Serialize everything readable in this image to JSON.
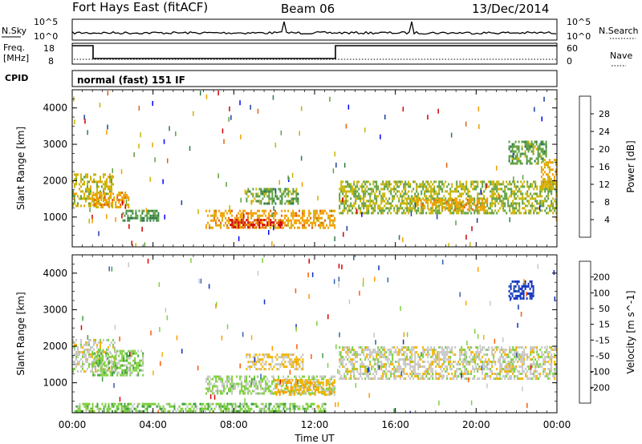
{
  "header": {
    "station": "Fort Hays East (fitACF)",
    "beam": "Beam 06",
    "date": "13/Dec/2014"
  },
  "top_panel": {
    "left_label": "N.Sky",
    "right_label": "N.Search",
    "left_ticks": [
      "10^5",
      "10^0"
    ],
    "right_ticks": [
      "10^5",
      "10^0"
    ]
  },
  "freq_panel": {
    "left_label_line1": "Freq.",
    "left_label_line2": "[MHz]",
    "right_label": "Nave",
    "left_ticks": [
      "18",
      "8"
    ],
    "right_ticks": [
      "60",
      "0"
    ]
  },
  "cpid": {
    "label": "CPID",
    "value": "normal (fast) 151 IF"
  },
  "chart_data": [
    {
      "type": "heatmap",
      "title": "",
      "xlabel": "Time UT",
      "ylabel": "Slant Range [km]",
      "x_ticks": [
        "00:00",
        "04:00",
        "08:00",
        "12:00",
        "16:00",
        "20:00",
        "00:00"
      ],
      "xlim": [
        0,
        24
      ],
      "y_ticks": [
        "1000",
        "2000",
        "3000",
        "4000"
      ],
      "ylim": [
        180,
        4500
      ],
      "colorbar": {
        "label": "Power [dB]",
        "ticks": [
          "28",
          "24",
          "20",
          "16",
          "12",
          "8",
          "4"
        ],
        "range": [
          0,
          32
        ],
        "colors": [
          "#0000ff",
          "#1b3fa0",
          "#2f7a4a",
          "#5fa040",
          "#c8b400",
          "#f0a000",
          "#e06010",
          "#d00000"
        ]
      },
      "regions": [
        {
          "t": [
            0.0,
            2.0
          ],
          "r": [
            1300,
            2200
          ],
          "value": 18
        },
        {
          "t": [
            1.0,
            2.8
          ],
          "r": [
            1300,
            1700
          ],
          "value": 22
        },
        {
          "t": [
            2.4,
            4.3
          ],
          "r": [
            900,
            1200
          ],
          "value": 12
        },
        {
          "t": [
            6.6,
            13.0
          ],
          "r": [
            700,
            1200
          ],
          "value": 22
        },
        {
          "t": [
            7.8,
            10.5
          ],
          "r": [
            750,
            950
          ],
          "value": 28
        },
        {
          "t": [
            8.6,
            11.2
          ],
          "r": [
            1400,
            1800
          ],
          "value": 14
        },
        {
          "t": [
            13.2,
            24.0
          ],
          "r": [
            1100,
            2000
          ],
          "value": 16
        },
        {
          "t": [
            17.0,
            20.5
          ],
          "r": [
            1200,
            1500
          ],
          "value": 22
        },
        {
          "t": [
            21.6,
            23.5
          ],
          "r": [
            2500,
            3100
          ],
          "value": 14
        },
        {
          "t": [
            23.2,
            24.0
          ],
          "r": [
            1800,
            2600
          ],
          "value": 20
        }
      ]
    },
    {
      "type": "heatmap",
      "title": "",
      "xlabel": "Time UT",
      "ylabel": "Slant Range [km]",
      "x_ticks": [
        "00:00",
        "04:00",
        "08:00",
        "12:00",
        "16:00",
        "20:00",
        "00:00"
      ],
      "xlim": [
        0,
        24
      ],
      "y_ticks": [
        "1000",
        "2000",
        "3000",
        "4000"
      ],
      "ylim": [
        180,
        4500
      ],
      "colorbar": {
        "label": "Velocity [m s^-1]",
        "ticks": [
          "200",
          "100",
          "50",
          "15",
          "-15",
          "-50",
          "-100",
          "-200"
        ],
        "range": [
          -250,
          250
        ],
        "colors": [
          "#e00000",
          "#ff5a00",
          "#ff9b00",
          "#f2b400",
          "#c8c8c8",
          "#7fd040",
          "#40a040",
          "#3060b0",
          "#1030c0"
        ]
      },
      "regions": [
        {
          "t": [
            0.0,
            2.2
          ],
          "r": [
            1300,
            2200
          ],
          "value": 0
        },
        {
          "t": [
            1.0,
            3.5
          ],
          "r": [
            1200,
            1900
          ],
          "value": 60
        },
        {
          "t": [
            6.6,
            13.0
          ],
          "r": [
            700,
            1200
          ],
          "value": 40
        },
        {
          "t": [
            10.0,
            13.0
          ],
          "r": [
            700,
            1100
          ],
          "value": -60
        },
        {
          "t": [
            8.6,
            11.4
          ],
          "r": [
            1400,
            1800
          ],
          "value": -40
        },
        {
          "t": [
            13.2,
            24.0
          ],
          "r": [
            1100,
            2000
          ],
          "value": 0
        },
        {
          "t": [
            21.6,
            22.8
          ],
          "r": [
            3300,
            3800
          ],
          "value": 220
        },
        {
          "t": [
            0.1,
            12.5
          ],
          "r": [
            200,
            450
          ],
          "value": 60
        }
      ]
    }
  ]
}
